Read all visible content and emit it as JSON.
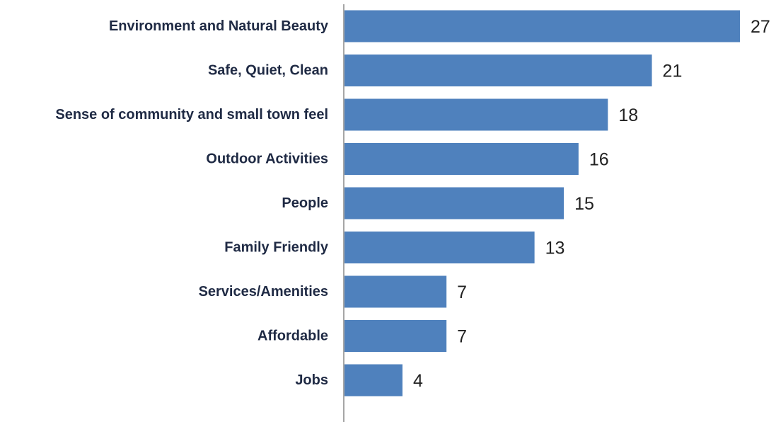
{
  "chart_data": {
    "type": "bar",
    "orientation": "horizontal",
    "title": "",
    "xlabel": "",
    "ylabel": "",
    "categories": [
      "Environment and Natural Beauty",
      "Safe, Quiet, Clean",
      "Sense of community and small town feel",
      "Outdoor Activities",
      "People",
      "Family Friendly",
      "Services/Amenities",
      "Affordable",
      "Jobs"
    ],
    "values": [
      27,
      21,
      18,
      16,
      15,
      13,
      7,
      7,
      4
    ],
    "xlim": [
      0,
      27
    ],
    "grid": false,
    "legend": "none",
    "data_labels": true,
    "bar_color": "#4f81bd",
    "axis_color": "#a6a6a6"
  }
}
